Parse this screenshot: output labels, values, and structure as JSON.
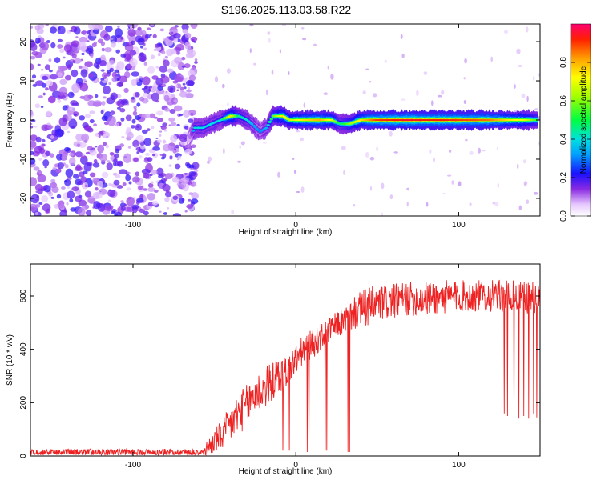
{
  "title": "S196.2025.113.03.58.R22",
  "chart_data": [
    {
      "type": "heatmap",
      "xlabel": "Height of straight line (km)",
      "ylabel": "Frequency (Hz)",
      "xlim": [
        -163,
        150
      ],
      "ylim": [
        -24.5,
        24.5
      ],
      "xticks": [
        -100,
        0,
        100
      ],
      "yticks": [
        -20,
        -10,
        0,
        10,
        20
      ],
      "noise_region_x": [
        -163,
        -63
      ],
      "ridge": [
        {
          "x": -66,
          "y": -5,
          "a": 0.15
        },
        {
          "x": -62,
          "y": -2,
          "a": 0.4
        },
        {
          "x": -57,
          "y": -2,
          "a": 0.4
        },
        {
          "x": -52,
          "y": -1,
          "a": 0.4
        },
        {
          "x": -46,
          "y": 0,
          "a": 0.4
        },
        {
          "x": -40,
          "y": 1,
          "a": 0.75
        },
        {
          "x": -35,
          "y": 1,
          "a": 0.45
        },
        {
          "x": -30,
          "y": 0,
          "a": 0.4
        },
        {
          "x": -27,
          "y": -1,
          "a": 0.35
        },
        {
          "x": -22,
          "y": -3,
          "a": 0.3
        },
        {
          "x": -18,
          "y": -2,
          "a": 0.35
        },
        {
          "x": -14,
          "y": 1,
          "a": 0.55
        },
        {
          "x": -8,
          "y": 1,
          "a": 0.75
        },
        {
          "x": -4,
          "y": 0,
          "a": 0.65
        },
        {
          "x": 5,
          "y": 0,
          "a": 0.75
        },
        {
          "x": 15,
          "y": 0,
          "a": 0.8
        },
        {
          "x": 22,
          "y": 0,
          "a": 0.7
        },
        {
          "x": 27,
          "y": -1,
          "a": 0.45
        },
        {
          "x": 33,
          "y": -1,
          "a": 0.6
        },
        {
          "x": 40,
          "y": 0,
          "a": 0.75
        },
        {
          "x": 50,
          "y": 0,
          "a": 0.9
        },
        {
          "x": 60,
          "y": 0,
          "a": 0.92
        },
        {
          "x": 70,
          "y": 0,
          "a": 0.95
        },
        {
          "x": 80,
          "y": 0,
          "a": 0.92
        },
        {
          "x": 90,
          "y": 0,
          "a": 0.92
        },
        {
          "x": 100,
          "y": 0,
          "a": 0.9
        },
        {
          "x": 110,
          "y": 0,
          "a": 0.88
        },
        {
          "x": 120,
          "y": 0,
          "a": 0.85
        },
        {
          "x": 130,
          "y": 0,
          "a": 0.75
        },
        {
          "x": 140,
          "y": 0,
          "a": 0.7
        },
        {
          "x": 148,
          "y": 0,
          "a": 0.55
        }
      ]
    },
    {
      "type": "colorbar",
      "label": "Normalized spectral amplitude",
      "range": [
        0,
        1
      ],
      "ticks": [
        0.0,
        0.2,
        0.4,
        0.6,
        0.8
      ]
    },
    {
      "type": "line",
      "xlabel": "Height of straight line (km)",
      "ylabel": "SNR (10 * v/v)",
      "xlim": [
        -163,
        150
      ],
      "ylim": [
        0,
        720
      ],
      "xticks": [
        -100,
        0,
        100
      ],
      "yticks": [
        0,
        200,
        400,
        600
      ],
      "color": "#ee2222",
      "envelope": {
        "x": [
          -163,
          -60,
          -55,
          -50,
          -45,
          -40,
          -35,
          -30,
          -25,
          -20,
          -15,
          -10,
          -5,
          0,
          5,
          10,
          15,
          20,
          25,
          30,
          35,
          40,
          45,
          50,
          60,
          70,
          80,
          90,
          100,
          110,
          120,
          130,
          140,
          150
        ],
        "base": [
          15,
          15,
          25,
          55,
          80,
          120,
          160,
          190,
          230,
          250,
          280,
          300,
          320,
          360,
          400,
          420,
          440,
          470,
          490,
          510,
          530,
          550,
          560,
          570,
          580,
          590,
          590,
          595,
          600,
          600,
          600,
          600,
          595,
          590
        ],
        "jitter": [
          20,
          20,
          30,
          45,
          60,
          70,
          80,
          80,
          80,
          80,
          75,
          70,
          60,
          60,
          55,
          55,
          50,
          50,
          50,
          50,
          60,
          70,
          80,
          70,
          65,
          65,
          65,
          65,
          60,
          60,
          60,
          60,
          60,
          60
        ]
      },
      "dropouts": [
        {
          "x": -8,
          "y": 20
        },
        {
          "x": -4,
          "y": 20
        },
        {
          "x": 7,
          "y": 15
        },
        {
          "x": 8,
          "y": 15
        },
        {
          "x": 18,
          "y": 20
        },
        {
          "x": 19,
          "y": 20
        },
        {
          "x": 32,
          "y": 15
        },
        {
          "x": 33,
          "y": 15
        },
        {
          "x": 128,
          "y": 160
        },
        {
          "x": 130,
          "y": 150
        },
        {
          "x": 134,
          "y": 160
        },
        {
          "x": 137,
          "y": 140
        },
        {
          "x": 140,
          "y": 150
        },
        {
          "x": 143,
          "y": 140
        },
        {
          "x": 146,
          "y": 160
        },
        {
          "x": 148,
          "y": 145
        }
      ]
    }
  ]
}
